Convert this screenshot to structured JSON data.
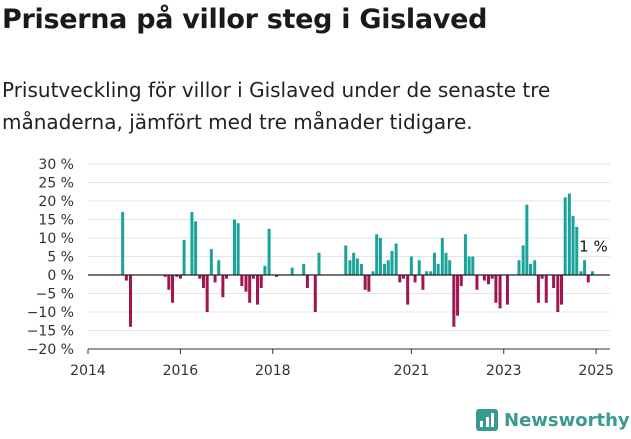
{
  "header": {
    "title": "Priserna på villor steg i Gislaved",
    "subtitle": "Prisutveckling för villor i Gislaved under de senaste tre månaderna, jämfört med tre månader tidigare."
  },
  "brand": {
    "name": "Newsworthy",
    "logo_icon": "bar-chart-icon",
    "color": "#3a9a8f"
  },
  "colors": {
    "positive": "#1aa39a",
    "negative": "#a0154e",
    "grid": "#e6e6e6",
    "zero_line": "#222222"
  },
  "chart_data": {
    "type": "bar",
    "title": "",
    "xlabel": "",
    "ylabel": "",
    "ylim": [
      -20,
      30
    ],
    "xlim": [
      2014,
      2025.3
    ],
    "grid": true,
    "y_ticks": [
      {
        "value": 30,
        "label": "30 %"
      },
      {
        "value": 25,
        "label": "25 %"
      },
      {
        "value": 20,
        "label": "20 %"
      },
      {
        "value": 15,
        "label": "15 %"
      },
      {
        "value": 10,
        "label": "10 %"
      },
      {
        "value": 5,
        "label": "5 %"
      },
      {
        "value": 0,
        "label": "0 %"
      },
      {
        "value": -5,
        "label": "−5 %"
      },
      {
        "value": -10,
        "label": "−10 %"
      },
      {
        "value": -15,
        "label": "−15 %"
      },
      {
        "value": -20,
        "label": "−20 %"
      }
    ],
    "x_ticks": [
      {
        "value": 2014,
        "label": "2014"
      },
      {
        "value": 2016,
        "label": "2016"
      },
      {
        "value": 2018,
        "label": "2018"
      },
      {
        "value": 2021,
        "label": "2021"
      },
      {
        "value": 2023,
        "label": "2023"
      },
      {
        "value": 2025,
        "label": "2025"
      }
    ],
    "annotation": {
      "text": "1 %",
      "x": 2025.0,
      "y": 1
    },
    "x": [
      2014.75,
      2014.83,
      2014.92,
      2015.67,
      2015.75,
      2015.83,
      2015.92,
      2016.0,
      2016.08,
      2016.25,
      2016.33,
      2016.42,
      2016.5,
      2016.58,
      2016.67,
      2016.75,
      2016.83,
      2016.92,
      2017.0,
      2017.17,
      2017.25,
      2017.33,
      2017.42,
      2017.5,
      2017.58,
      2017.67,
      2017.75,
      2017.83,
      2017.92,
      2018.08,
      2018.42,
      2018.67,
      2018.75,
      2018.92,
      2019.0,
      2019.58,
      2019.67,
      2019.75,
      2019.83,
      2019.92,
      2020.0,
      2020.08,
      2020.17,
      2020.25,
      2020.33,
      2020.42,
      2020.5,
      2020.58,
      2020.67,
      2020.75,
      2020.83,
      2020.92,
      2021.0,
      2021.08,
      2021.17,
      2021.25,
      2021.33,
      2021.42,
      2021.5,
      2021.58,
      2021.67,
      2021.75,
      2021.83,
      2021.92,
      2022.0,
      2022.08,
      2022.17,
      2022.25,
      2022.33,
      2022.42,
      2022.58,
      2022.67,
      2022.75,
      2022.83,
      2022.92,
      2023.08,
      2023.33,
      2023.42,
      2023.5,
      2023.58,
      2023.67,
      2023.75,
      2023.83,
      2023.92,
      2024.08,
      2024.17,
      2024.25,
      2024.33,
      2024.42,
      2024.5,
      2024.58,
      2024.67,
      2024.75,
      2024.83,
      2024.92
    ],
    "values": [
      17,
      -1.5,
      -14,
      -0.5,
      -4,
      -7.5,
      -0.5,
      -1,
      9.5,
      17,
      14.5,
      -1,
      -3.5,
      -10,
      7,
      -2,
      4,
      -6,
      -1,
      15,
      14,
      -3,
      -4.5,
      -7.5,
      -1,
      -8,
      -3.5,
      2.5,
      12.5,
      -0.5,
      2,
      3,
      -3.5,
      -10,
      6,
      8,
      4,
      6,
      4.5,
      3,
      -4,
      -4.5,
      1,
      11,
      10,
      3,
      4,
      6.5,
      8.5,
      -2,
      -1,
      -8,
      5,
      -2,
      4,
      -4,
      1,
      1,
      6,
      3,
      10,
      6,
      4,
      -14,
      -11,
      -3,
      11,
      5,
      5,
      -4,
      -1.5,
      -2.5,
      -1,
      -7.5,
      -9,
      -8,
      4,
      8,
      19,
      3,
      4,
      -7.5,
      -1,
      -7.5,
      -3.5,
      -10,
      -8,
      21,
      22,
      16,
      13,
      1,
      4,
      -2,
      1
    ]
  }
}
